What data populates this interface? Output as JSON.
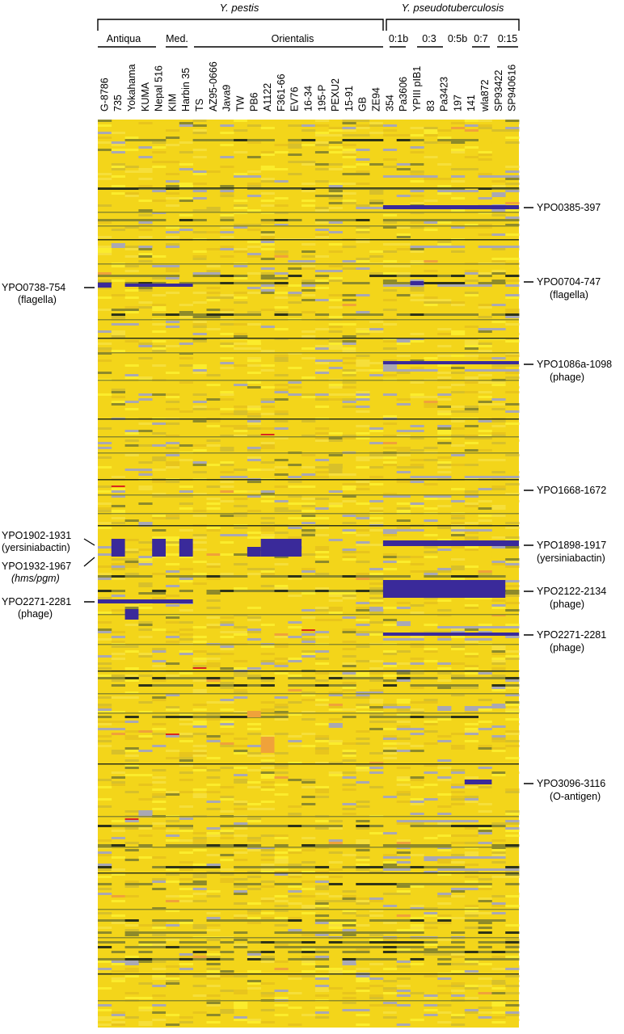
{
  "groups": {
    "pestis": "Y. pestis",
    "pseudo": "Y. pseudotuberculosis"
  },
  "subgroups": {
    "antiqua": "Antiqua",
    "medievalis": "Med.",
    "orientalis": "Orientalis",
    "o1b": "0:1b",
    "o3": "0:3",
    "o5b": "0:5b",
    "o7": "0:7",
    "o15": "0:15"
  },
  "strains": [
    "G-8786",
    "735",
    "Yokahama",
    "KUMA",
    "Nepal 516",
    "KIM",
    "Harbin 35",
    "TS",
    "AZ95-0666",
    "Java9",
    "TW",
    "PB6",
    "A1122",
    "F361-66",
    "EV76",
    "16-34",
    "195-P",
    "PEXU2",
    "15-91",
    "GB",
    "ZE94",
    "354",
    "Pa3606",
    "YPIII pIB1",
    "83",
    "Pa3423",
    "197",
    "141",
    "wla872",
    "SP93422",
    "SP940616"
  ],
  "left_labels": [
    {
      "name": "YPO0738-754",
      "note": "(flagella)"
    },
    {
      "name": "YPO1902-1931",
      "note": "(yersiniabactin)"
    },
    {
      "name": "YPO1932-1967",
      "note": "(hms/pgm)"
    },
    {
      "name": "YPO2271-2281",
      "note": "(phage)"
    }
  ],
  "right_labels": [
    {
      "name": "YPO0385-397",
      "note": ""
    },
    {
      "name": "YPO0704-747",
      "note": "(flagella)"
    },
    {
      "name": "YPO1086a-1098",
      "note": "(phage)"
    },
    {
      "name": "YPO1668-1672",
      "note": ""
    },
    {
      "name": "YPO1898-1917",
      "note": "(yersiniabactin)"
    },
    {
      "name": "YPO2122-2134",
      "note": "(phage)"
    },
    {
      "name": "YPO2271-2281",
      "note": "(phage)"
    },
    {
      "name": "YPO3096-3116",
      "note": "(O-antigen)"
    }
  ],
  "colors": {
    "base": "#f3d51a",
    "bright": "#fbec2c",
    "dark": "#2f3418",
    "olive": "#8e8a2a",
    "absent": "#3a2a9a",
    "bluish": "#a9a8b4",
    "orange": "#f0a23a",
    "red": "#d9281e"
  }
}
